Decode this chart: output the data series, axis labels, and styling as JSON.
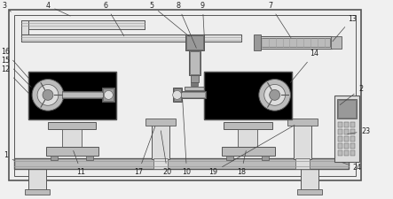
{
  "bg": "#f0f0f0",
  "lc": "#555555",
  "white": "#ffffff",
  "lgray": "#dddddd",
  "mgray": "#bbbbbb",
  "dgray": "#999999",
  "xdgray": "#777777",
  "hatch": "#cccccc"
}
